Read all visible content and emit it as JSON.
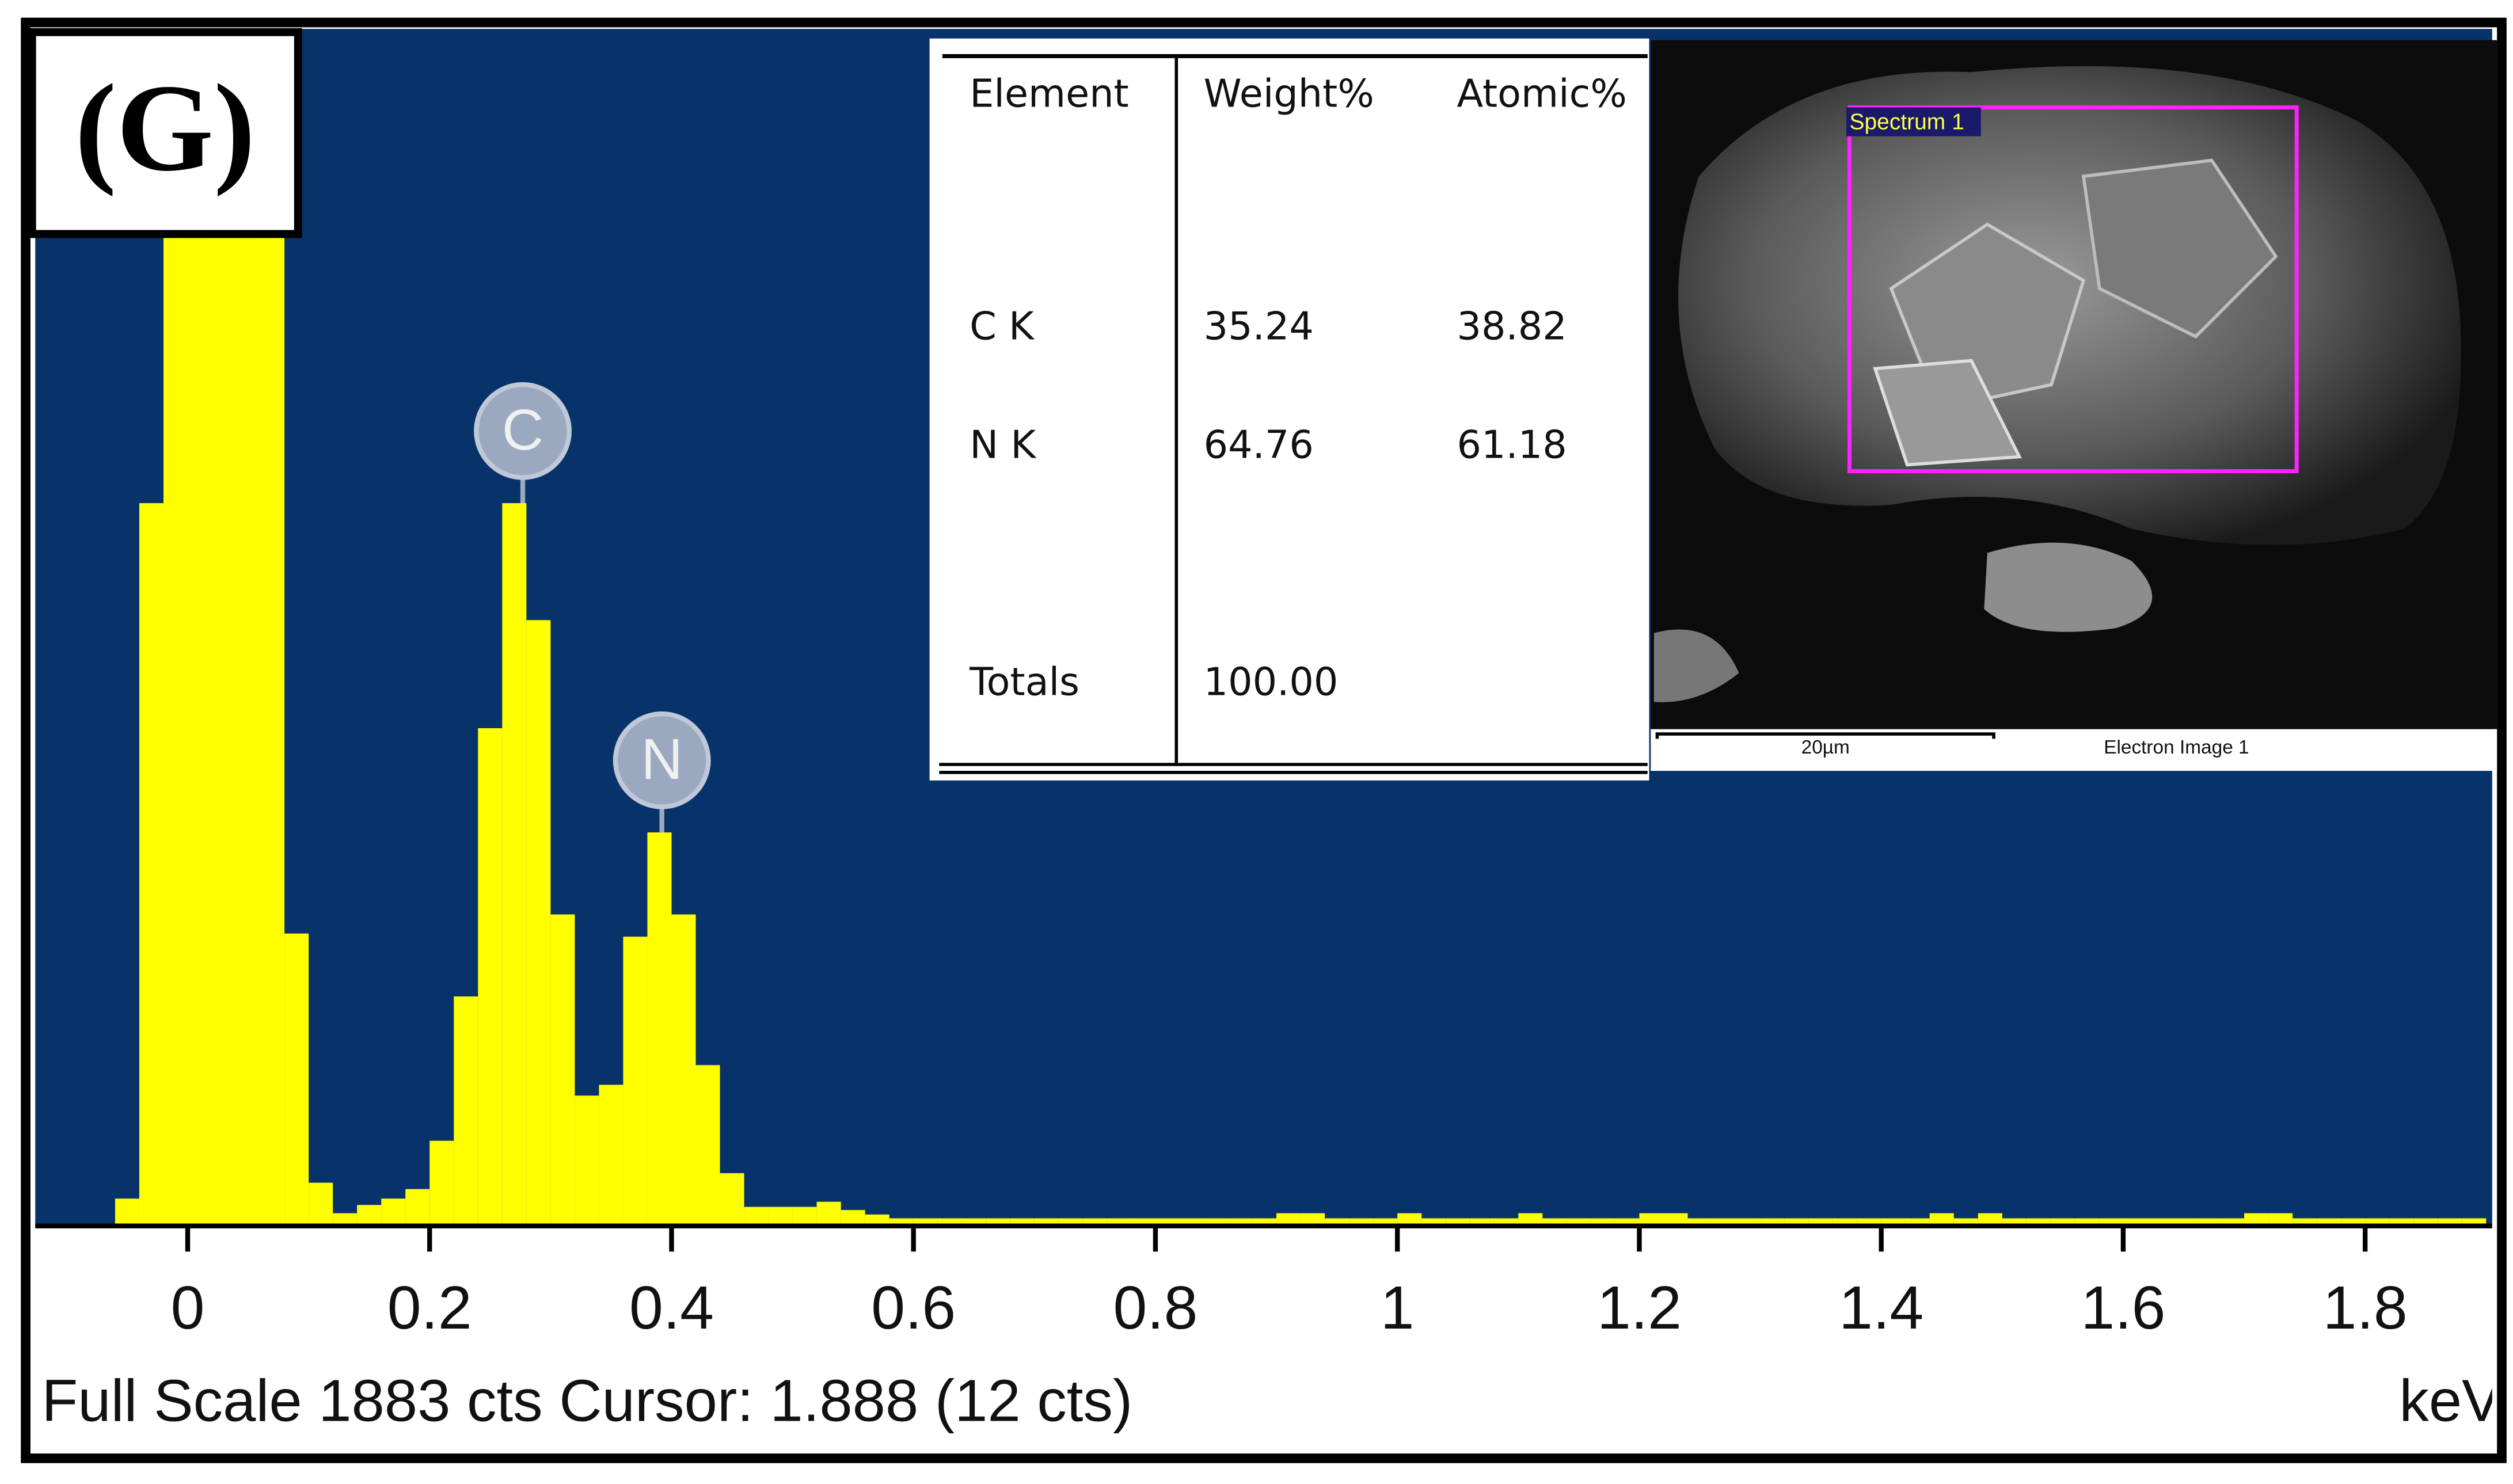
{
  "chart_data": {
    "type": "histogram",
    "panel_label": "(G)",
    "status": "Full Scale 1883 cts Cursor: 1.888  (12 cts)",
    "x_label": "keV",
    "bins": [
      -0.06,
      -0.04,
      -0.02,
      0,
      0.02,
      0.04,
      0.06,
      0.08,
      0.1,
      0.12,
      0.14,
      0.16,
      0.18,
      0.2,
      0.22,
      0.24,
      0.26,
      0.28,
      0.3,
      0.32,
      0.34,
      0.36,
      0.38,
      0.4,
      0.42,
      0.44,
      0.46,
      0.48,
      0.5,
      0.52,
      0.54,
      0.56,
      0.58,
      0.6,
      0.62,
      0.64,
      0.66,
      0.68,
      0.7,
      0.72,
      0.74,
      0.76,
      0.78,
      0.8,
      0.82,
      0.84,
      0.86,
      0.88,
      0.9,
      0.92,
      0.94,
      0.96,
      0.98,
      1,
      1.02,
      1.04,
      1.06,
      1.08,
      1.1,
      1.12,
      1.14,
      1.16,
      1.18,
      1.2,
      1.22,
      1.24,
      1.26,
      1.28,
      1.3,
      1.32,
      1.34,
      1.36,
      1.38,
      1.4,
      1.42,
      1.44,
      1.46,
      1.48,
      1.5,
      1.52,
      1.54,
      1.56,
      1.58,
      1.6,
      1.62,
      1.64,
      1.66,
      1.68,
      1.7,
      1.72,
      1.74,
      1.76,
      1.78,
      1.8,
      1.82,
      1.84,
      1.86,
      1.88,
      1.9
    ],
    "values": [
      43,
      1137,
      1883,
      1883,
      1883,
      1883,
      1883,
      460,
      68,
      20,
      33,
      43,
      58,
      134,
      361,
      783,
      1137,
      953,
      490,
      205,
      222,
      455,
      619,
      490,
      253,
      83,
      30,
      30,
      30,
      38,
      25,
      18,
      12,
      12,
      12,
      12,
      12,
      12,
      12,
      12,
      12,
      12,
      12,
      12,
      12,
      12,
      12,
      12,
      20,
      20,
      12,
      12,
      12,
      20,
      12,
      12,
      12,
      12,
      20,
      12,
      12,
      12,
      12,
      20,
      20,
      12,
      12,
      12,
      12,
      12,
      12,
      12,
      12,
      12,
      12,
      20,
      12,
      20,
      12,
      12,
      12,
      12,
      12,
      12,
      12,
      12,
      12,
      12,
      20,
      20,
      12,
      12,
      12,
      12,
      12,
      12,
      12,
      12
    ],
    "color": "#ffff00",
    "background": "#08336a",
    "xlim": [
      -0.126,
      1.905
    ],
    "ylim": [
      0,
      1883
    ],
    "xticks": [
      0,
      0.2,
      0.4,
      0.6,
      0.8,
      1,
      1.2,
      1.4,
      1.6,
      1.8
    ],
    "peak_labels": [
      {
        "label": "C",
        "x": 0.277
      },
      {
        "label": "N",
        "x": 0.392
      }
    ]
  },
  "table": {
    "header": [
      "Element",
      "Weight%",
      "Atomic%"
    ],
    "rows": [
      [
        "C K",
        "35.24",
        "38.82"
      ],
      [
        "N K",
        "64.76",
        "61.18"
      ],
      [
        "Totals",
        "100.00"
      ]
    ]
  },
  "image": {
    "region_label": "Spectrum 1",
    "scale_bar": "20µm",
    "caption": "Electron Image 1"
  }
}
